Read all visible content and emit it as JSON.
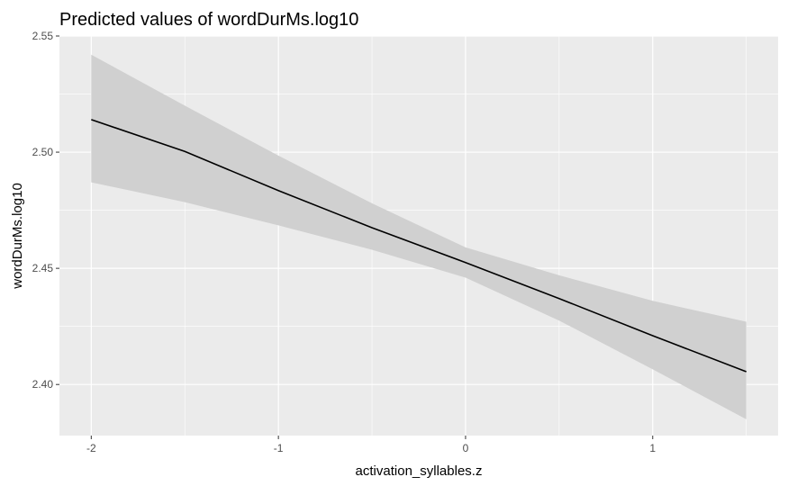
{
  "chart_data": {
    "type": "line",
    "title": "Predicted values of wordDurMs.log10",
    "xlabel": "activation_syllables.z",
    "ylabel": "wordDurMs.log10",
    "xlim": [
      -2.17,
      1.67
    ],
    "ylim": [
      2.378,
      2.55
    ],
    "x_ticks": [
      -2,
      -1,
      0,
      1
    ],
    "x_tick_labels": [
      "-2",
      "-1",
      "0",
      "1"
    ],
    "x_minor_ticks": [
      -1.5,
      -0.5,
      0.5,
      1.5
    ],
    "y_ticks": [
      2.4,
      2.45,
      2.5,
      2.55
    ],
    "y_tick_labels": [
      "2.40",
      "2.45",
      "2.50",
      "2.55"
    ],
    "y_minor_ticks": [
      2.425,
      2.475,
      2.525
    ],
    "grid": true,
    "colors": {
      "panel_bg": "#ebebeb",
      "grid": "#ffffff",
      "ribbon": "#d0d0d0",
      "line": "#000000",
      "tick_label": "#4d4d4d"
    },
    "series": [
      {
        "x": [
          -2.0,
          -1.5,
          -1.0,
          -0.5,
          0.0,
          0.5,
          1.0,
          1.5
        ],
        "y": [
          2.514,
          2.5003,
          2.4835,
          2.4675,
          2.4525,
          2.437,
          2.421,
          2.4055
        ],
        "lower": [
          2.487,
          2.4785,
          2.4685,
          2.458,
          2.446,
          2.4275,
          2.4065,
          2.385
        ],
        "upper": [
          2.542,
          2.52,
          2.4985,
          2.478,
          2.459,
          2.447,
          2.436,
          2.427
        ]
      }
    ]
  }
}
